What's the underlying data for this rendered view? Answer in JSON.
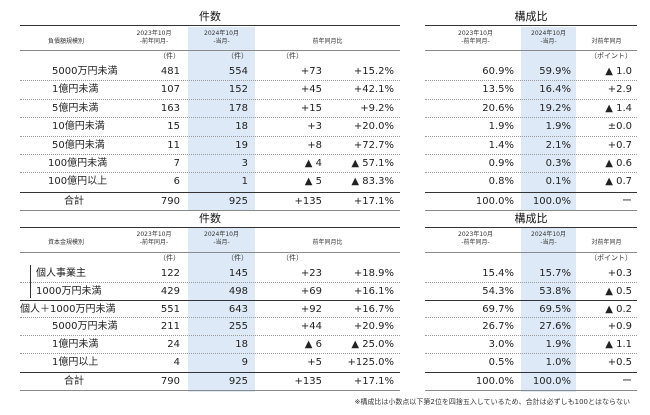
{
  "table1": {
    "title_left": "件数",
    "title_right": "構成比",
    "header": {
      "label": "負債額規模別",
      "prev": [
        "2023年10月",
        "-前年同月-"
      ],
      "curr": [
        "2024年10月",
        "-当月-"
      ],
      "yoy": "前年同月比",
      "ratio_prev": [
        "2023年10月",
        "-前年同月-"
      ],
      "ratio_curr": [
        "2024年10月",
        "-当月-"
      ],
      "ratio_yoy": "対前年同月"
    },
    "units": {
      "prev": "（件）",
      "curr": "（件）",
      "diff": "（件）",
      "point": "（ポイント）"
    },
    "rows": [
      {
        "label": "5000万円未満",
        "prev": "481",
        "curr": "554",
        "diff": "+73",
        "pct": "+15.2%",
        "r_prev": "60.9%",
        "r_curr": "59.9%",
        "r_diff": "▲ 1.0"
      },
      {
        "label": "1億円未満",
        "prev": "107",
        "curr": "152",
        "diff": "+45",
        "pct": "+42.1%",
        "r_prev": "13.5%",
        "r_curr": "16.4%",
        "r_diff": "+2.9"
      },
      {
        "label": "5億円未満",
        "prev": "163",
        "curr": "178",
        "diff": "+15",
        "pct": "+9.2%",
        "r_prev": "20.6%",
        "r_curr": "19.2%",
        "r_diff": "▲ 1.4"
      },
      {
        "label": "10億円未満",
        "prev": "15",
        "curr": "18",
        "diff": "+3",
        "pct": "+20.0%",
        "r_prev": "1.9%",
        "r_curr": "1.9%",
        "r_diff": "±0.0"
      },
      {
        "label": "50億円未満",
        "prev": "11",
        "curr": "19",
        "diff": "+8",
        "pct": "+72.7%",
        "r_prev": "1.4%",
        "r_curr": "2.1%",
        "r_diff": "+0.7"
      },
      {
        "label": "100億円未満",
        "prev": "7",
        "curr": "3",
        "diff": "▲ 4",
        "pct": "▲ 57.1%",
        "r_prev": "0.9%",
        "r_curr": "0.3%",
        "r_diff": "▲ 0.6"
      },
      {
        "label": "100億円以上",
        "prev": "6",
        "curr": "1",
        "diff": "▲ 5",
        "pct": "▲ 83.3%",
        "r_prev": "0.8%",
        "r_curr": "0.1%",
        "r_diff": "▲ 0.7"
      }
    ],
    "total": {
      "label": "合計",
      "prev": "790",
      "curr": "925",
      "diff": "+135",
      "pct": "+17.1%",
      "r_prev": "100.0%",
      "r_curr": "100.0%",
      "r_diff": "ー"
    }
  },
  "table2": {
    "title_left": "件数",
    "title_right": "構成比",
    "header": {
      "label": "資本金規模別",
      "prev": [
        "2023年10月",
        "-前年同月-"
      ],
      "curr": [
        "2024年10月",
        "-当月-"
      ],
      "yoy": "前年同月比",
      "ratio_prev": [
        "2023年10月",
        "-前年同月-"
      ],
      "ratio_curr": [
        "2024年10月",
        "-当月-"
      ],
      "ratio_yoy": "対前年同月"
    },
    "units": {
      "prev": "（件）",
      "curr": "（件）",
      "diff": "（件）",
      "point": "（ポイント）"
    },
    "rows": [
      {
        "label": "個人事業主",
        "prev": "122",
        "curr": "145",
        "diff": "+23",
        "pct": "+18.9%",
        "r_prev": "15.4%",
        "r_curr": "15.7%",
        "r_diff": "+0.3"
      },
      {
        "label": "1000万円未満",
        "prev": "429",
        "curr": "498",
        "diff": "+69",
        "pct": "+16.1%",
        "r_prev": "54.3%",
        "r_curr": "53.8%",
        "r_diff": "▲ 0.5"
      },
      {
        "label": "個人＋1000万円未満",
        "prev": "551",
        "curr": "643",
        "diff": "+92",
        "pct": "+16.7%",
        "r_prev": "69.7%",
        "r_curr": "69.5%",
        "r_diff": "▲ 0.2"
      },
      {
        "label": "5000万円未満",
        "prev": "211",
        "curr": "255",
        "diff": "+44",
        "pct": "+20.9%",
        "r_prev": "26.7%",
        "r_curr": "27.6%",
        "r_diff": "+0.9"
      },
      {
        "label": "1億円未満",
        "prev": "24",
        "curr": "18",
        "diff": "▲ 6",
        "pct": "▲ 25.0%",
        "r_prev": "3.0%",
        "r_curr": "1.9%",
        "r_diff": "▲ 1.1"
      },
      {
        "label": "1億円以上",
        "prev": "4",
        "curr": "9",
        "diff": "+5",
        "pct": "+125.0%",
        "r_prev": "0.5%",
        "r_curr": "1.0%",
        "r_diff": "+0.5"
      }
    ],
    "total": {
      "label": "合計",
      "prev": "790",
      "curr": "925",
      "diff": "+135",
      "pct": "+17.1%",
      "r_prev": "100.0%",
      "r_curr": "100.0%",
      "r_diff": "ー"
    }
  },
  "footnote": "※構成比は小数点以下第2位を四捨五入しているため、合計は必ずしも100とはならない"
}
